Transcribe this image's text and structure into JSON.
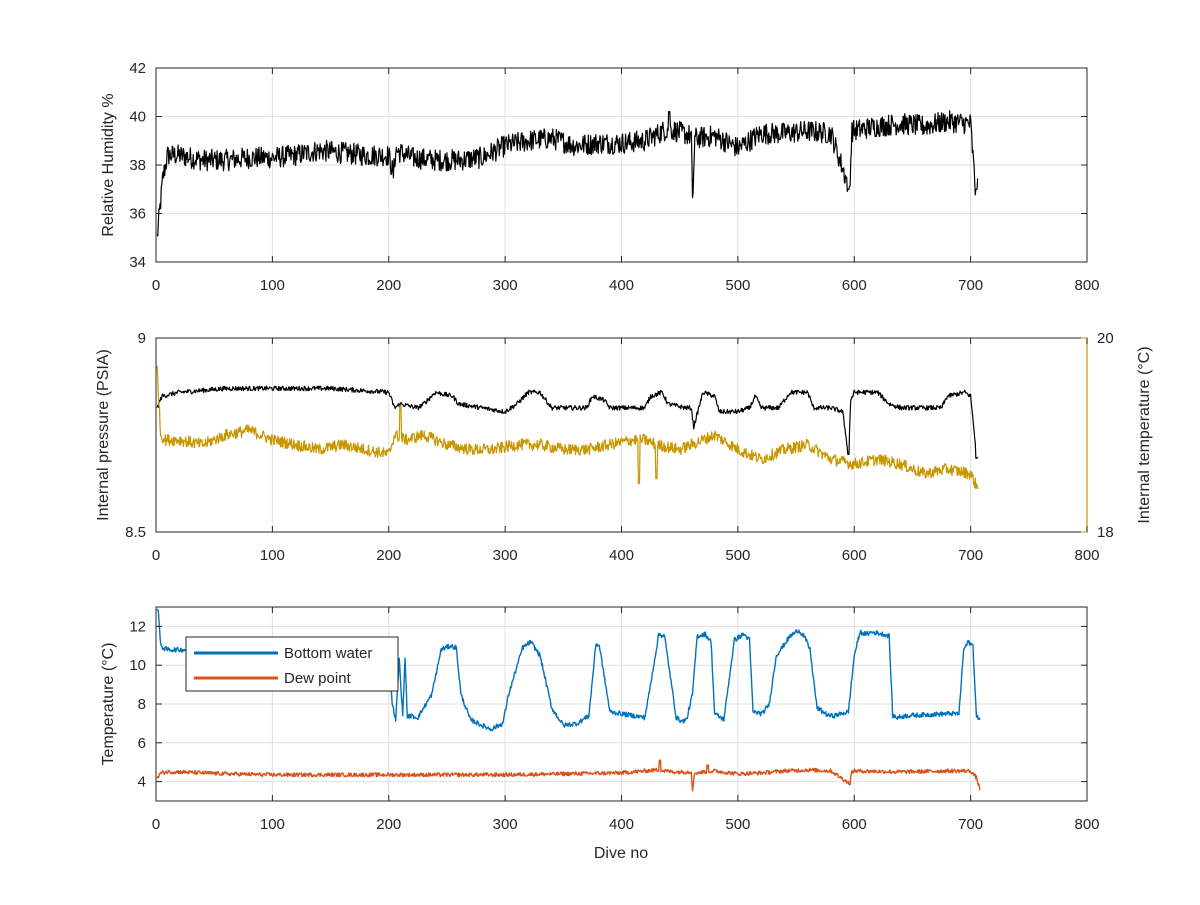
{
  "figure": {
    "xlabel": "Dive no"
  },
  "chart_data": [
    {
      "type": "line",
      "id": "humidity",
      "title": "",
      "xlabel": "",
      "ylabel": "Relative Humidity %",
      "xlim": [
        0,
        800
      ],
      "ylim": [
        34,
        42
      ],
      "xticks": [
        0,
        100,
        200,
        300,
        400,
        500,
        600,
        700,
        800
      ],
      "yticks": [
        34,
        36,
        38,
        40,
        42
      ],
      "grid": true,
      "series": [
        {
          "color": "#000000",
          "noise": 0.45,
          "x": [
            1,
            3,
            6,
            10,
            20,
            40,
            60,
            80,
            100,
            120,
            140,
            160,
            180,
            200,
            204,
            206,
            220,
            240,
            260,
            280,
            300,
            320,
            340,
            360,
            380,
            400,
            420,
            440,
            460,
            461,
            463,
            480,
            500,
            520,
            540,
            560,
            580,
            596,
            598,
            620,
            640,
            660,
            680,
            700,
            704,
            706
          ],
          "y": [
            35.0,
            36.0,
            37.5,
            38.4,
            38.4,
            38.2,
            38.2,
            38.3,
            38.3,
            38.4,
            38.6,
            38.5,
            38.4,
            38.4,
            37.6,
            38.6,
            38.3,
            38.2,
            38.2,
            38.3,
            38.8,
            39.0,
            39.1,
            38.8,
            38.9,
            38.9,
            39.0,
            39.5,
            39.2,
            36.3,
            39.1,
            39.2,
            38.7,
            39.3,
            39.3,
            39.4,
            39.3,
            37.0,
            39.4,
            39.6,
            39.7,
            39.6,
            39.8,
            39.7,
            37.0,
            37.0
          ],
          "spikes": [
            [
              441,
              40.2
            ],
            [
              595,
              37.0
            ],
            [
              705,
              37.0
            ]
          ]
        }
      ]
    },
    {
      "type": "line",
      "id": "pressure",
      "title": "",
      "xlabel": "",
      "ylabel": "Internal pressure (PSIA)",
      "ylabel_right": "Internal temperature (°C)",
      "xlim": [
        0,
        800
      ],
      "ylim": [
        8.5,
        9.0
      ],
      "ylim_right": [
        18,
        20
      ],
      "xticks": [
        0,
        100,
        200,
        300,
        400,
        500,
        600,
        700,
        800
      ],
      "yticks": [
        8.5,
        9
      ],
      "yticks_right": [
        18,
        20
      ],
      "grid": true,
      "right_axis_color": "#c99600",
      "series": [
        {
          "axis": "left",
          "color": "#000000",
          "noise": 0.006,
          "x": [
            1,
            5,
            20,
            60,
            100,
            150,
            200,
            205,
            210,
            225,
            230,
            240,
            255,
            260,
            300,
            310,
            320,
            330,
            340,
            370,
            375,
            385,
            390,
            420,
            425,
            435,
            440,
            455,
            460,
            462,
            470,
            480,
            484,
            500,
            510,
            515,
            520,
            535,
            545,
            560,
            565,
            580,
            590,
            595,
            597,
            600,
            605,
            620,
            630,
            640,
            675,
            680,
            695,
            700,
            704,
            706
          ],
          "y": [
            8.82,
            8.85,
            8.86,
            8.87,
            8.87,
            8.87,
            8.86,
            8.82,
            8.83,
            8.82,
            8.83,
            8.86,
            8.85,
            8.83,
            8.81,
            8.83,
            8.86,
            8.86,
            8.82,
            8.82,
            8.85,
            8.84,
            8.82,
            8.82,
            8.85,
            8.86,
            8.83,
            8.82,
            8.82,
            8.77,
            8.86,
            8.85,
            8.81,
            8.81,
            8.82,
            8.85,
            8.82,
            8.82,
            8.86,
            8.86,
            8.82,
            8.82,
            8.81,
            8.7,
            8.84,
            8.86,
            8.86,
            8.86,
            8.83,
            8.82,
            8.82,
            8.85,
            8.86,
            8.85,
            8.73,
            8.69
          ],
          "spikes": [
            [
              595,
              8.7
            ],
            [
              705,
              8.69
            ]
          ]
        },
        {
          "axis": "right",
          "color": "#c99600",
          "noise": 0.06,
          "x": [
            1,
            4,
            8,
            20,
            40,
            60,
            80,
            100,
            120,
            140,
            160,
            180,
            200,
            205,
            215,
            230,
            250,
            270,
            290,
            310,
            330,
            350,
            370,
            390,
            410,
            420,
            430,
            450,
            470,
            480,
            500,
            520,
            540,
            560,
            580,
            600,
            620,
            640,
            660,
            680,
            700,
            706
          ],
          "y": [
            19.7,
            19.0,
            18.95,
            18.95,
            18.9,
            19.0,
            19.05,
            18.95,
            18.9,
            18.85,
            18.9,
            18.85,
            18.8,
            19.0,
            18.95,
            19.0,
            18.9,
            18.85,
            18.85,
            18.9,
            18.9,
            18.85,
            18.85,
            18.9,
            18.95,
            18.95,
            18.9,
            18.85,
            18.95,
            19.0,
            18.85,
            18.75,
            18.85,
            18.9,
            18.75,
            18.7,
            18.75,
            18.7,
            18.6,
            18.65,
            18.6,
            18.45
          ],
          "spikes": [
            [
              210,
              19.3
            ],
            [
              415,
              18.5
            ],
            [
              430,
              18.55
            ]
          ]
        }
      ]
    },
    {
      "type": "line",
      "id": "temperature",
      "title": "",
      "xlabel": "Dive no",
      "ylabel": "Temperature (°C)",
      "xlim": [
        0,
        800
      ],
      "ylim": [
        3,
        13
      ],
      "xticks": [
        0,
        100,
        200,
        300,
        400,
        500,
        600,
        700,
        800
      ],
      "yticks": [
        4,
        6,
        8,
        10,
        12
      ],
      "grid": true,
      "legend_placement": "top-left",
      "series": [
        {
          "name": "Bottom water",
          "color": "#0072bd",
          "noise": 0.12,
          "x": [
            1,
            2,
            4,
            6,
            10,
            40,
            100,
            150,
            198,
            200,
            203,
            206,
            209,
            212,
            214,
            216,
            218,
            225,
            237,
            245,
            253,
            258,
            262,
            270,
            280,
            288,
            298,
            303,
            315,
            322,
            330,
            340,
            350,
            362,
            372,
            378,
            381,
            390,
            420,
            425,
            432,
            437,
            447,
            452,
            456,
            461,
            465,
            472,
            477,
            480,
            488,
            493,
            497,
            505,
            510,
            513,
            521,
            527,
            533,
            545,
            552,
            557,
            562,
            568,
            578,
            583,
            595,
            600,
            605,
            610,
            615,
            625,
            630,
            633,
            637,
            645,
            680,
            690,
            694,
            698,
            702,
            705,
            708
          ],
          "y": [
            13.0,
            12.8,
            11.0,
            10.9,
            10.8,
            10.8,
            10.8,
            10.7,
            10.6,
            10.8,
            8.0,
            7.2,
            10.3,
            7.4,
            10.4,
            7.3,
            7.4,
            7.3,
            8.5,
            10.8,
            11.0,
            10.9,
            8.5,
            7.2,
            6.9,
            6.7,
            7.0,
            8.5,
            10.9,
            11.2,
            10.5,
            7.8,
            6.9,
            7.0,
            7.4,
            11.1,
            11.0,
            7.6,
            7.3,
            9.0,
            11.6,
            11.5,
            7.3,
            7.1,
            7.2,
            8.5,
            11.5,
            11.6,
            11.2,
            7.5,
            7.2,
            9.5,
            11.3,
            11.6,
            11.3,
            7.6,
            7.5,
            8.0,
            10.5,
            11.5,
            11.8,
            11.5,
            10.8,
            7.8,
            7.4,
            7.4,
            7.6,
            10.5,
            11.7,
            11.6,
            11.7,
            11.6,
            11.5,
            7.4,
            7.3,
            7.4,
            7.5,
            7.5,
            10.8,
            11.2,
            11.0,
            7.3,
            7.3
          ]
        },
        {
          "name": "Dew point",
          "color": "#d95319",
          "noise": 0.1,
          "x": [
            1,
            3,
            8,
            20,
            40,
            60,
            100,
            150,
            200,
            250,
            300,
            350,
            400,
            430,
            445,
            460,
            461,
            463,
            480,
            500,
            520,
            540,
            560,
            580,
            596,
            598,
            600,
            640,
            680,
            700,
            705,
            708
          ],
          "y": [
            4.1,
            4.4,
            4.5,
            4.5,
            4.45,
            4.4,
            4.35,
            4.35,
            4.35,
            4.35,
            4.35,
            4.4,
            4.45,
            4.6,
            4.5,
            4.5,
            3.6,
            4.45,
            4.55,
            4.4,
            4.45,
            4.55,
            4.6,
            4.55,
            3.9,
            4.5,
            4.55,
            4.5,
            4.55,
            4.55,
            4.2,
            3.6
          ],
          "spikes": [
            [
              433,
              5.1
            ],
            [
              474,
              4.85
            ],
            [
              596,
              3.85
            ]
          ]
        }
      ]
    }
  ]
}
